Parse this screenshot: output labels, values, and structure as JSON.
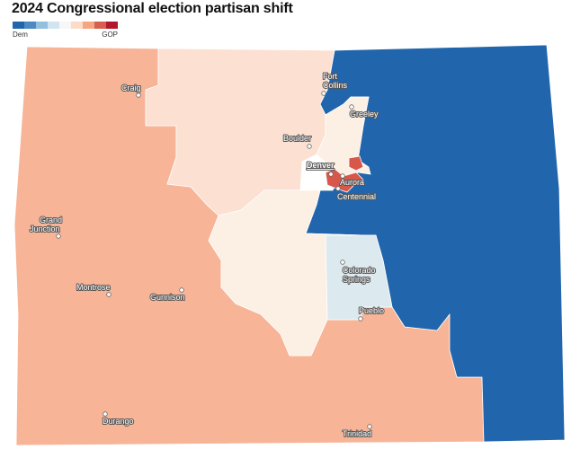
{
  "title": "2024 Congressional election partisan shift",
  "legend": {
    "left_label": "Dem",
    "right_label": "GOP",
    "colors": [
      "#2165ac",
      "#4b8ac2",
      "#92c0de",
      "#d1e5f0",
      "#f7f7f7",
      "#fddbc7",
      "#f4a582",
      "#d6604d",
      "#b2182b"
    ]
  },
  "region_colors": {
    "dem_strong": "#2165ac",
    "dem_light": "#dce9ef",
    "gop_medium": "#f7b497",
    "gop_light": "#fce0d2",
    "gop_very_light": "#fcefe3",
    "gop_strong": "#d7584b"
  },
  "cities": [
    {
      "name": "Craig",
      "icon": "city-dot-icon"
    },
    {
      "name": "Fort Collins",
      "icon": "city-dot-icon"
    },
    {
      "name": "Greeley",
      "icon": "city-dot-icon"
    },
    {
      "name": "Boulder",
      "icon": "city-dot-icon"
    },
    {
      "name": "Denver",
      "icon": "city-dot-icon"
    },
    {
      "name": "Aurora",
      "icon": "city-dot-icon"
    },
    {
      "name": "Centennial",
      "icon": "city-dot-icon"
    },
    {
      "name": "Grand Junction",
      "icon": "city-dot-icon"
    },
    {
      "name": "Colorado Springs",
      "icon": "city-dot-icon"
    },
    {
      "name": "Montrose",
      "icon": "city-dot-icon"
    },
    {
      "name": "Gunnison",
      "icon": "city-dot-icon"
    },
    {
      "name": "Pueblo",
      "icon": "city-dot-icon"
    },
    {
      "name": "Durango",
      "icon": "city-dot-icon"
    },
    {
      "name": "Trinidad",
      "icon": "city-dot-icon"
    }
  ]
}
